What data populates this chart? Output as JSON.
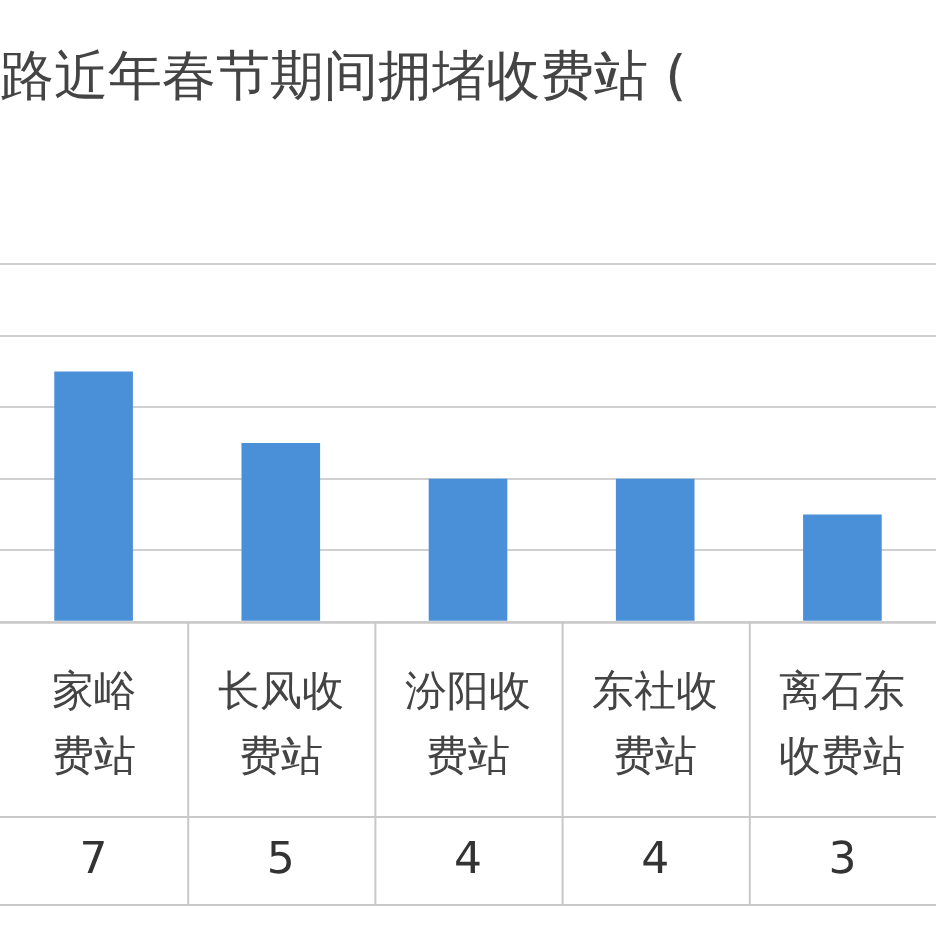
{
  "chart_data": {
    "type": "bar",
    "title": "路近年春节期间拥堵收费站 (",
    "categories": [
      "家峪费站",
      "长风收费站",
      "汾阳收费站",
      "东社收费站",
      "离石东收费站"
    ],
    "values": [
      7,
      5,
      4,
      4,
      3
    ],
    "color": "#4a90d9",
    "grid": "y",
    "tick_labels": "x",
    "data_labels": true
  }
}
